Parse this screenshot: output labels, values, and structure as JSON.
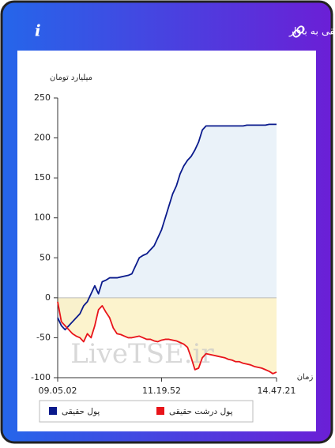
{
  "chart_data": {
    "type": "line",
    "title": "برآیند ورود و خروج پول حقیقی و پول درشت حقیقی به بازار",
    "y_label": "میلیارد تومان",
    "x_label": "زمان",
    "watermark": "LiveTSE.ir",
    "categories": [
      "09.05.02",
      null,
      null,
      null,
      null,
      null,
      null,
      null,
      null,
      null,
      null,
      null,
      null,
      null,
      null,
      null,
      null,
      null,
      null,
      null,
      null,
      null,
      null,
      null,
      null,
      null,
      null,
      null,
      "11.19.52",
      null,
      null,
      null,
      null,
      null,
      null,
      null,
      null,
      null,
      null,
      null,
      null,
      null,
      null,
      null,
      null,
      null,
      null,
      null,
      null,
      null,
      null,
      null,
      null,
      null,
      null,
      null,
      null,
      null,
      null,
      "14.47.21"
    ],
    "series": [
      {
        "name": "پول حقیقی",
        "color": "#0a1a8c",
        "fill": "#e6f0f8",
        "values": [
          -25,
          -35,
          -40,
          -35,
          -30,
          -25,
          -20,
          -10,
          -5,
          5,
          15,
          5,
          20,
          22,
          25,
          25,
          25,
          26,
          27,
          28,
          30,
          40,
          50,
          53,
          55,
          60,
          65,
          75,
          85,
          100,
          115,
          130,
          140,
          155,
          165,
          172,
          177,
          185,
          195,
          210,
          215,
          215,
          215,
          215,
          215,
          215,
          215,
          215,
          215,
          215,
          215,
          216,
          216,
          216,
          216,
          216,
          216,
          217,
          217,
          217
        ]
      },
      {
        "name": "پول درشت حقیقی",
        "color": "#e8141a",
        "fill": "#fbf1c4",
        "values": [
          -5,
          -30,
          -35,
          -40,
          -45,
          -48,
          -50,
          -55,
          -45,
          -50,
          -35,
          -15,
          -10,
          -18,
          -25,
          -38,
          -45,
          -46,
          -48,
          -50,
          -50,
          -49,
          -48,
          -50,
          -52,
          -52,
          -54,
          -55,
          -53,
          -52,
          -52,
          -53,
          -54,
          -56,
          -58,
          -62,
          -75,
          -90,
          -88,
          -75,
          -70,
          -71,
          -72,
          -73,
          -74,
          -75,
          -77,
          -78,
          -80,
          -80,
          -82,
          -83,
          -84,
          -86,
          -87,
          -88,
          -90,
          -92,
          -95,
          -93
        ]
      }
    ],
    "ylim": [
      -100,
      250
    ],
    "yticks": [
      -100,
      -50,
      0,
      50,
      100,
      150,
      200,
      250
    ],
    "grid": false
  }
}
